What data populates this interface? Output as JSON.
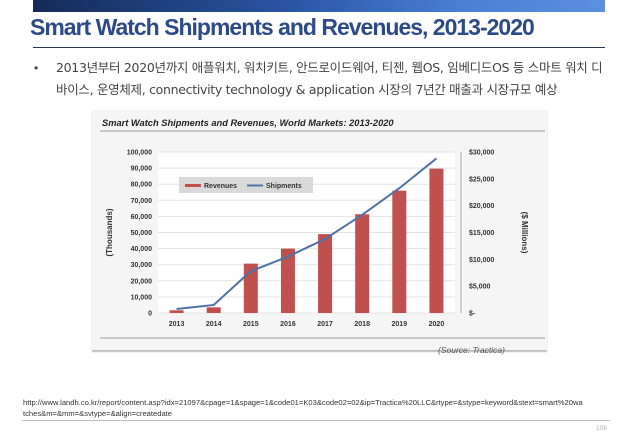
{
  "slide": {
    "title": "Smart Watch Shipments and Revenues, 2013-2020",
    "bullet_marker": "•",
    "bullet_text": "2013년부터 2020년까지 애플워치, 워치키트, 안드로이드웨어, 티젠, 웹OS, 임베디드OS 등 스마트 워치 디바이스, 운영체제, connectivity technology & application 시장의 7년간 매출과 시장규모 예상",
    "source_url": "http://www.landh.co.kr/report/content.asp?idx=21097&cpage=1&spage=1&code01=K03&code02=02&ip=Tractica%20LLC&rtype=&stype=keyword&stext=smart%20watches&m=&mm=&svtype=&align=createdate",
    "page_number": "108",
    "colors": {
      "title": "#2b4a86",
      "revenues_bar": "#c0504d",
      "shipments_line": "#4f71a6"
    }
  },
  "chart_data": {
    "type": "bar",
    "title": "Smart Watch Shipments and Revenues, World Markets: 2013-2020",
    "source_note": "(Source: Tractica)",
    "categories": [
      "2013",
      "2014",
      "2015",
      "2016",
      "2017",
      "2018",
      "2019",
      "2020"
    ],
    "series": [
      {
        "name": "Revenues",
        "type": "bar",
        "axis": "right",
        "values": [
          500,
          1050,
          9200,
          12000,
          14700,
          18400,
          22800,
          26900
        ]
      },
      {
        "name": "Shipments",
        "type": "line",
        "axis": "left",
        "values": [
          2500,
          5000,
          26000,
          35000,
          46000,
          61000,
          77500,
          96000
        ]
      }
    ],
    "ylabel_left": "(Thousands)",
    "ylabel_right": "($ Millions)",
    "ylim_left": [
      0,
      100000
    ],
    "ylim_right": [
      0,
      30000
    ],
    "yticks_left": [
      "0",
      "10,000",
      "20,000",
      "30,000",
      "40,000",
      "50,000",
      "60,000",
      "70,000",
      "80,000",
      "90,000",
      "100,000"
    ],
    "yticks_right": [
      "$-",
      "$5,000",
      "$10,000",
      "$15,000",
      "$20,000",
      "$25,000",
      "$30,000"
    ],
    "grid": true,
    "legend": {
      "placement": "top-left",
      "entries": [
        "Revenues",
        "Shipments"
      ]
    }
  }
}
